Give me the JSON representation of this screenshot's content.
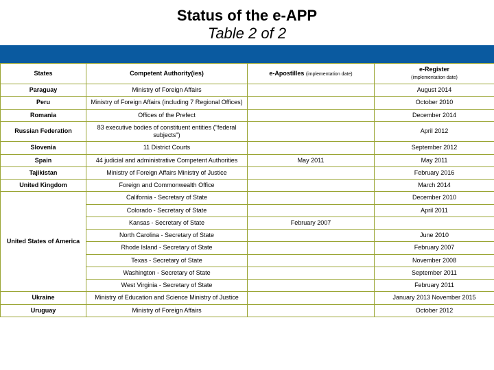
{
  "title": {
    "line1": "Status of the e-APP",
    "line2": "Table 2 of 2"
  },
  "headers": {
    "states": "States",
    "authority": "Competent Authority(ies)",
    "apostilles_main": "e-Apostilles",
    "apostilles_sub": "(implementation date)",
    "eregister_main": "e-Register",
    "eregister_sub": "(implementation date)"
  },
  "colors": {
    "header_bar": "#0a5aa0",
    "border": "#9aa533",
    "background": "#ffffff",
    "text": "#000000"
  },
  "col_widths": {
    "states": 125,
    "authority": 235,
    "apostilles": 185,
    "eregister": 175
  },
  "font_sizes": {
    "title": 22,
    "cell": 9,
    "subnote": 7
  },
  "rows": [
    {
      "state": "Paraguay",
      "authority": "Ministry of Foreign Affairs",
      "apostilles": "",
      "eregister": "August 2014"
    },
    {
      "state": "Peru",
      "authority": "Ministry of Foreign Affairs (including 7 Regional Offices)",
      "apostilles": "",
      "eregister": "October 2010"
    },
    {
      "state": "Romania",
      "authority": "Offices of the Prefect",
      "apostilles": "",
      "eregister": "December 2014"
    },
    {
      "state": "Russian Federation",
      "authority": "83 executive bodies of constituent entities (\"federal subjects\")",
      "apostilles": "",
      "eregister": "April 2012"
    },
    {
      "state": "Slovenia",
      "authority": "11 District Courts",
      "apostilles": "",
      "eregister": "September 2012"
    },
    {
      "state": "Spain",
      "authority": "44 judicial and administrative Competent Authorities",
      "apostilles": "May 2011",
      "eregister": "May 2011"
    },
    {
      "state": "Tajikistan",
      "authority": "Ministry of Foreign Affairs Ministry of Justice",
      "apostilles": "",
      "eregister": "February 2016"
    },
    {
      "state": "United Kingdom",
      "authority": "Foreign and Commonwealth Office",
      "apostilles": "",
      "eregister": "March 2014"
    }
  ],
  "usa": {
    "state": "United States of America",
    "subrows": [
      {
        "authority": "California - Secretary of State",
        "apostilles": "",
        "eregister": "December 2010"
      },
      {
        "authority": "Colorado - Secretary of State",
        "apostilles": "",
        "eregister": "April 2011"
      },
      {
        "authority": "Kansas - Secretary of State",
        "apostilles": "February 2007",
        "eregister": ""
      },
      {
        "authority": "North Carolina - Secretary of State",
        "apostilles": "",
        "eregister": "June 2010"
      },
      {
        "authority": "Rhode Island - Secretary of State",
        "apostilles": "",
        "eregister": "February 2007"
      },
      {
        "authority": "Texas - Secretary of State",
        "apostilles": "",
        "eregister": "November 2008"
      },
      {
        "authority": "Washington - Secretary of State",
        "apostilles": "",
        "eregister": "September 2011"
      },
      {
        "authority": "West Virginia - Secretary of State",
        "apostilles": "",
        "eregister": "February 2011"
      }
    ]
  },
  "tail": [
    {
      "state": "Ukraine",
      "authority": "Ministry of Education and Science Ministry of Justice",
      "apostilles": "",
      "eregister": "January 2013 November 2015"
    },
    {
      "state": "Uruguay",
      "authority": "Ministry of Foreign Affairs",
      "apostilles": "",
      "eregister": "October 2012"
    }
  ]
}
